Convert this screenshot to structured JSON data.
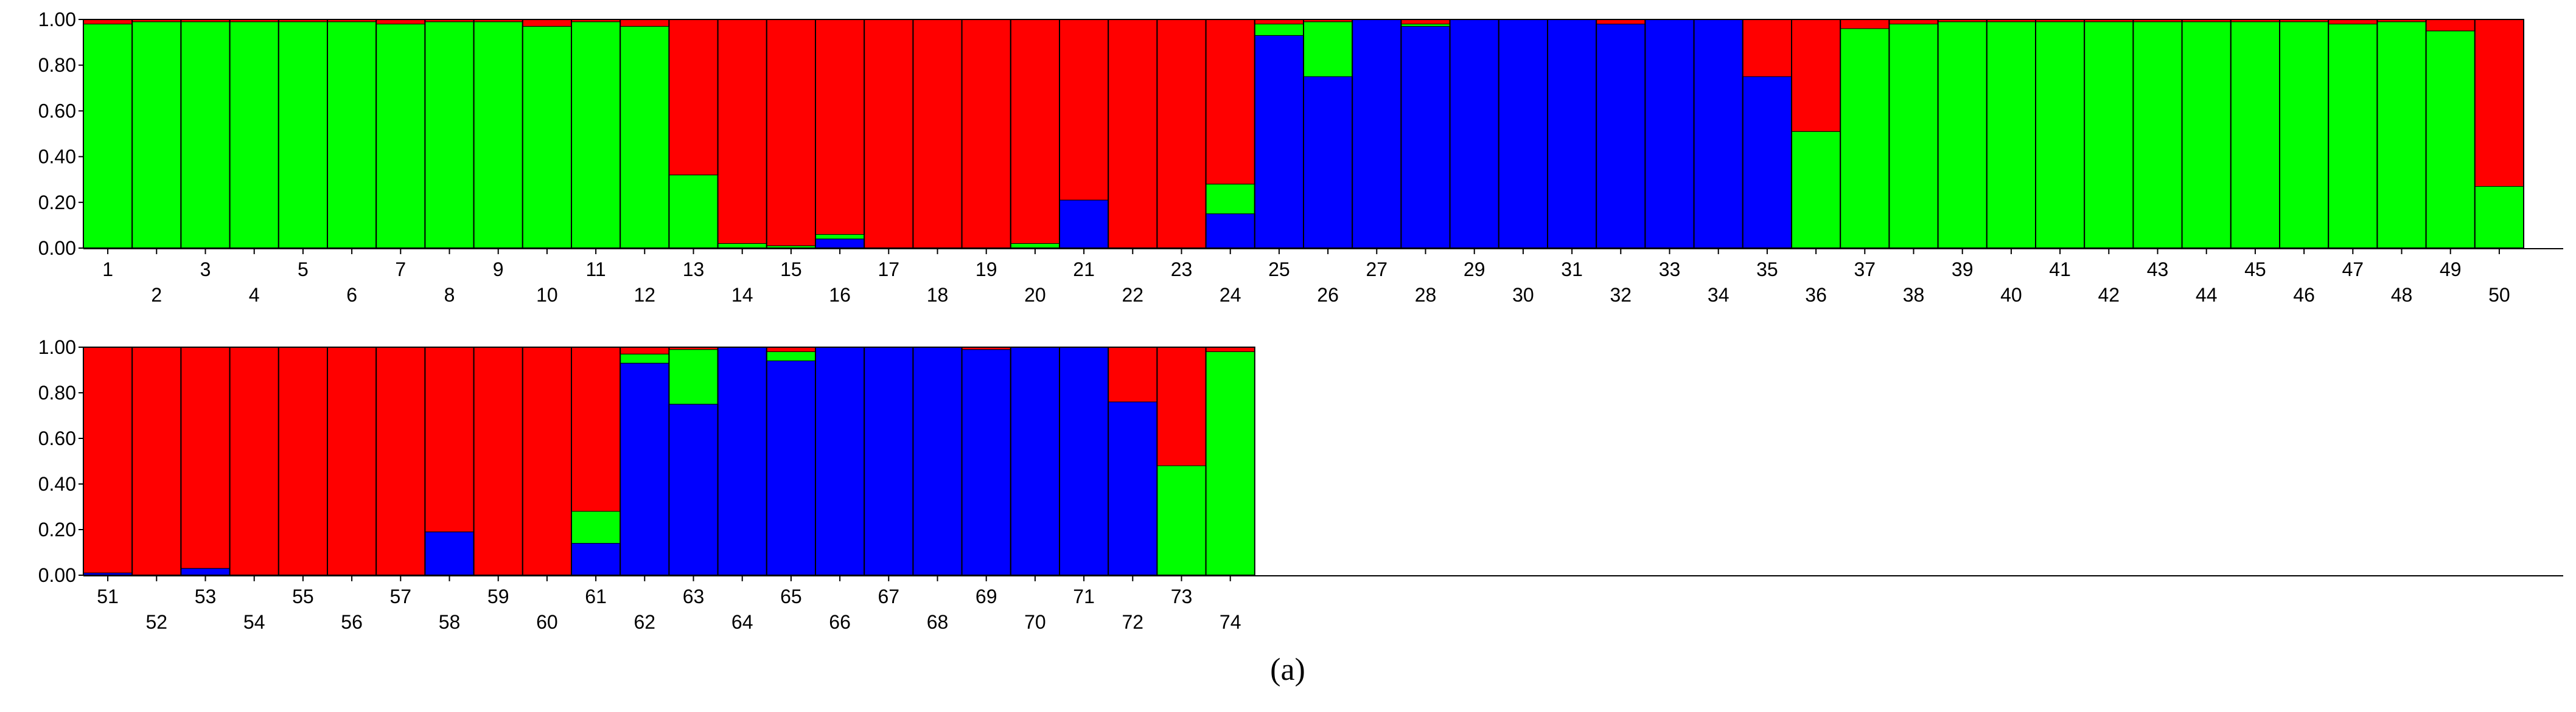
{
  "caption": "(a)",
  "colors": {
    "blue": "#0000ff",
    "green": "#00ff00",
    "red": "#ff0000",
    "outline": "#000000"
  },
  "chart_data": {
    "type": "bar",
    "stacked": true,
    "normalized": true,
    "ylim": [
      0,
      1
    ],
    "y_ticks": [
      "0.00",
      "0.20",
      "0.40",
      "0.60",
      "0.80",
      "1.00"
    ],
    "grid": false,
    "legend": "none",
    "series_colors": [
      "blue",
      "green",
      "red"
    ],
    "panels": [
      {
        "categories": [
          "1",
          "2",
          "3",
          "4",
          "5",
          "6",
          "7",
          "8",
          "9",
          "10",
          "11",
          "12",
          "13",
          "14",
          "15",
          "16",
          "17",
          "18",
          "19",
          "20",
          "21",
          "22",
          "23",
          "24",
          "25",
          "26",
          "27",
          "28",
          "29",
          "30",
          "31",
          "32",
          "33",
          "34",
          "35",
          "36",
          "37",
          "38",
          "39",
          "40",
          "41",
          "42",
          "43",
          "44",
          "45",
          "46",
          "47",
          "48",
          "49",
          "50"
        ],
        "blue": [
          0,
          0,
          0,
          0,
          0,
          0,
          0,
          0,
          0,
          0,
          0,
          0,
          0,
          0,
          0,
          0.04,
          0,
          0,
          0,
          0,
          0.21,
          0,
          0,
          0.15,
          0.93,
          0.75,
          1.0,
          0.97,
          1.0,
          1.0,
          1.0,
          0.98,
          1.0,
          1.0,
          0.75,
          0,
          0,
          0,
          0,
          0,
          0,
          0,
          0,
          0,
          0,
          0,
          0,
          0,
          0,
          0
        ],
        "green": [
          0.98,
          0.99,
          0.99,
          0.99,
          0.99,
          0.99,
          0.98,
          0.99,
          0.99,
          0.97,
          0.99,
          0.97,
          0.32,
          0.02,
          0.01,
          0.02,
          0,
          0,
          0,
          0.02,
          0,
          0,
          0,
          0.13,
          0.05,
          0.24,
          0,
          0.01,
          0,
          0,
          0,
          0,
          0,
          0,
          0,
          0.51,
          0.96,
          0.98,
          0.99,
          0.99,
          0.99,
          0.99,
          0.99,
          0.99,
          0.99,
          0.99,
          0.98,
          0.99,
          0.95,
          0.27
        ],
        "red": [
          0.02,
          0.01,
          0.01,
          0.01,
          0.01,
          0.01,
          0.02,
          0.01,
          0.01,
          0.03,
          0.01,
          0.03,
          0.68,
          0.98,
          0.99,
          0.94,
          1.0,
          1.0,
          1.0,
          0.98,
          0.79,
          1.0,
          1.0,
          0.72,
          0.02,
          0.01,
          0,
          0.02,
          0,
          0,
          0,
          0.02,
          0,
          0,
          0.25,
          0.49,
          0.04,
          0.02,
          0.01,
          0.01,
          0.01,
          0.01,
          0.01,
          0.01,
          0.01,
          0.01,
          0.02,
          0.01,
          0.05,
          0.73
        ]
      },
      {
        "categories": [
          "51",
          "52",
          "53",
          "54",
          "55",
          "56",
          "57",
          "58",
          "59",
          "60",
          "61",
          "62",
          "63",
          "64",
          "65",
          "66",
          "67",
          "68",
          "69",
          "70",
          "71",
          "72",
          "73",
          "74"
        ],
        "blue": [
          0.01,
          0,
          0.03,
          0,
          0,
          0,
          0,
          0.19,
          0,
          0,
          0.14,
          0.93,
          0.75,
          1.0,
          0.94,
          1.0,
          1.0,
          1.0,
          0.99,
          1.0,
          1.0,
          0.76,
          0,
          0
        ],
        "green": [
          0,
          0,
          0,
          0,
          0,
          0,
          0,
          0,
          0,
          0,
          0.14,
          0.04,
          0.24,
          0,
          0.04,
          0,
          0,
          0,
          0,
          0,
          0,
          0,
          0.48,
          0.98
        ],
        "red": [
          0.99,
          1.0,
          0.97,
          1.0,
          1.0,
          1.0,
          1.0,
          0.81,
          1.0,
          1.0,
          0.72,
          0.03,
          0.01,
          0,
          0.02,
          0,
          0,
          0,
          0.01,
          0,
          0,
          0.24,
          0.52,
          0.02
        ]
      }
    ]
  }
}
